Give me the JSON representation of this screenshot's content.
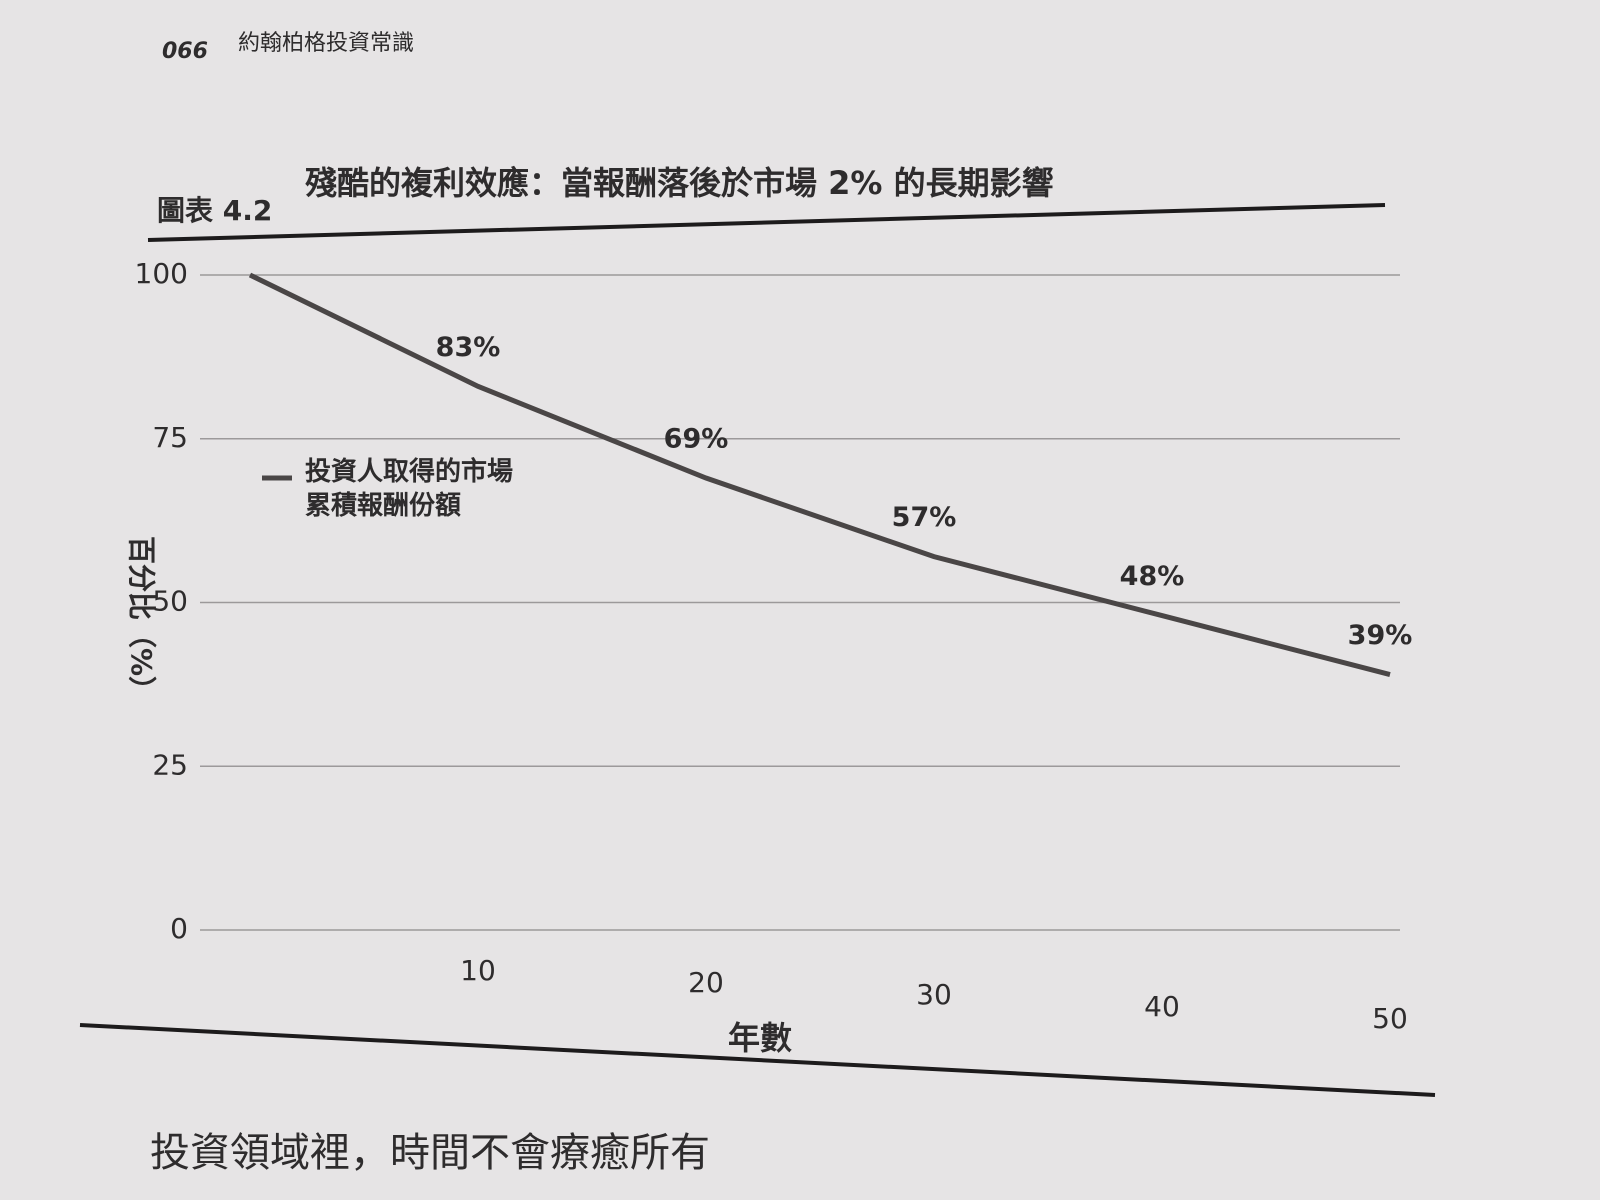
{
  "page_number": "066",
  "book_title": "約翰柏格投資常識",
  "figure_label": "圖表 4.2",
  "body_text": "投資領域裡，時間不會療癒所有",
  "chart_data": {
    "type": "line",
    "title": "殘酷的複利效應：當報酬落後於市場 2% 的長期影響",
    "x_label": "年數",
    "y_label": "百分比（%）",
    "x": [
      0,
      10,
      20,
      30,
      40,
      50
    ],
    "series": [
      {
        "name": "投資人取得的市場累積報酬份額",
        "color": "#4a4646",
        "values": [
          100,
          83,
          69,
          57,
          48,
          39
        ],
        "value_labels": [
          null,
          "83%",
          "69%",
          "57%",
          "48%",
          "39%"
        ]
      }
    ],
    "xlim": [
      0,
      50
    ],
    "xticks": [
      10,
      20,
      30,
      40,
      50
    ],
    "ylim": [
      0,
      100
    ],
    "yticks": [
      0,
      25,
      50,
      75,
      100
    ],
    "grid": true
  }
}
